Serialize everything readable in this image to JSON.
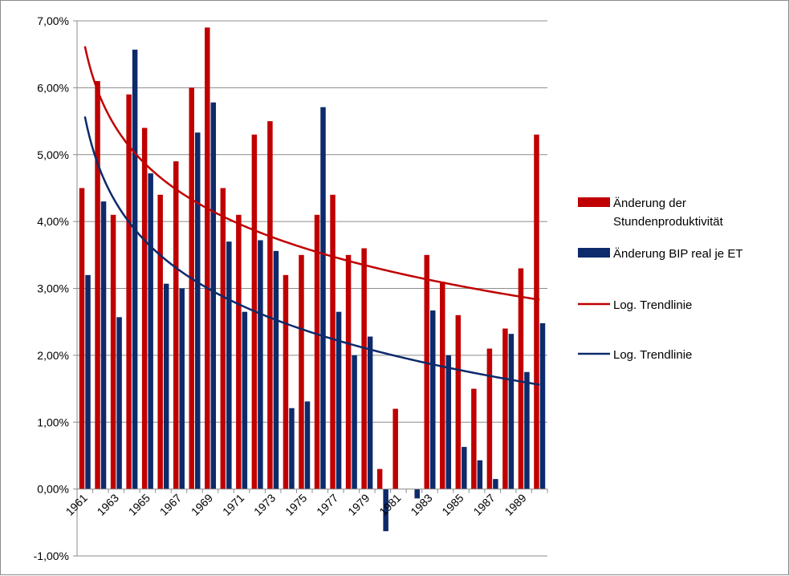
{
  "chart_data": {
    "type": "bar",
    "title": "",
    "xlabel": "",
    "ylabel": "",
    "ylim": [
      -0.01,
      0.07
    ],
    "y_tick_values": [
      -0.01,
      0,
      0.01,
      0.02,
      0.03,
      0.04,
      0.05,
      0.06,
      0.07
    ],
    "y_tick_labels": [
      "-1,00%",
      "0,00%",
      "1,00%",
      "2,00%",
      "3,00%",
      "4,00%",
      "5,00%",
      "6,00%",
      "7,00%"
    ],
    "categories": [
      "1961",
      "1962",
      "1963",
      "1964",
      "1965",
      "1966",
      "1967",
      "1968",
      "1969",
      "1970",
      "1971",
      "1972",
      "1973",
      "1974",
      "1975",
      "1976",
      "1977",
      "1978",
      "1979",
      "1980",
      "1981",
      "1982",
      "1983",
      "1984",
      "1985",
      "1986",
      "1987",
      "1988",
      "1989",
      "1990"
    ],
    "x_tick_labels": [
      "1961",
      "",
      "1963",
      "",
      "1965",
      "",
      "1967",
      "",
      "1969",
      "",
      "1971",
      "",
      "1973",
      "",
      "1975",
      "",
      "1977",
      "",
      "1979",
      "",
      "1981",
      "",
      "1983",
      "",
      "1985",
      "",
      "1987",
      "",
      "1989",
      ""
    ],
    "grid": "horizontal",
    "legend_position": "right",
    "series": [
      {
        "name": "Änderung der Stundenproduktivität",
        "color": "#c00000",
        "values": [
          0.045,
          0.061,
          0.041,
          0.059,
          0.054,
          0.044,
          0.049,
          0.06,
          0.069,
          0.045,
          0.041,
          0.053,
          0.055,
          0.032,
          0.035,
          0.041,
          0.044,
          0.035,
          0.036,
          0.003,
          0.012,
          0.0,
          0.035,
          0.031,
          0.026,
          0.015,
          0.021,
          0.024,
          0.033,
          0.053
        ]
      },
      {
        "name": "Änderung BIP real je ET",
        "color": "#0d2a6b",
        "values": [
          0.032,
          0.043,
          0.0257,
          0.0657,
          0.0472,
          0.0307,
          0.03,
          0.0533,
          0.0578,
          0.037,
          0.0265,
          0.0372,
          0.0356,
          0.0121,
          0.0131,
          0.0571,
          0.0265,
          0.02,
          0.0228,
          -0.0063,
          0.0,
          -0.0014,
          0.0267,
          0.02,
          0.0063,
          0.0043,
          0.0015,
          0.0232,
          0.0175,
          0.0248
        ]
      }
    ],
    "trendlines": [
      {
        "name": "Log. Trendlinie",
        "type": "logarithmic",
        "color": "#c00000",
        "x": [
          1961,
          1990
        ],
        "y": [
          0.0662,
          0.0283
        ]
      },
      {
        "name": "Log. Trendlinie",
        "type": "logarithmic",
        "color": "#0d2a6b",
        "x": [
          1961,
          1990
        ],
        "y": [
          0.0557,
          0.0156
        ]
      }
    ]
  }
}
